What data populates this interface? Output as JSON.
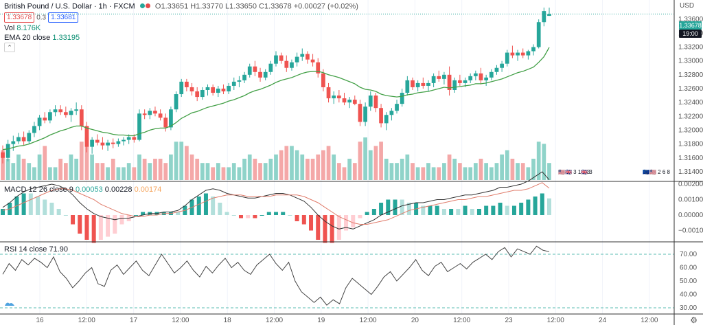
{
  "header": {
    "symbol_title": "British Pound / U.S. Dollar · 1h · FXCM",
    "ohlc": "O1.33651 H1.33770 L1.33650 C1.33678 +0.00027 (+0.02%)",
    "bid": "1.33678",
    "spread": "0.3",
    "ask": "1.33681",
    "vol_label": "Vol",
    "vol_value": "8.176K",
    "ema_label": "EMA 20 close",
    "ema_value": "1.33195"
  },
  "macd": {
    "label": "MACD 12 26 close 9",
    "v1": "0.00053",
    "v2": "0.00228",
    "v3": "0.00174"
  },
  "rsi": {
    "label": "RSI 14 close",
    "value": "71.90"
  },
  "price_axis": {
    "labels": [
      "1.33800",
      "1.33600",
      "1.33400",
      "1.33200",
      "1.33000",
      "1.32800",
      "1.32600",
      "1.32400",
      "1.32200",
      "1.32000",
      "1.31800",
      "1.31600",
      "1.31400"
    ],
    "usd_label": "USD",
    "last_price": "1.33678",
    "countdown": "19:00"
  },
  "macd_axis": [
    "0.00200",
    "0.00100",
    "0.00000",
    "−0.00100"
  ],
  "rsi_axis": [
    "70.00",
    "60.00",
    "50.00",
    "40.00",
    "30.00"
  ],
  "time_axis": [
    "16",
    "12:00",
    "17",
    "12:00",
    "18",
    "12:00",
    "19",
    "12:00",
    "20",
    "12:00",
    "23",
    "12:00",
    "24",
    "12:00"
  ],
  "events": [
    {
      "flags": "🇺🇸🇬🇧",
      "count": "3 1 6 3"
    },
    {
      "flags": "🇬🇧",
      "count": "3"
    },
    {
      "flags": "🇪🇺🇺🇸",
      "count": "2 6 8"
    }
  ],
  "chart_data": {
    "type": "candlestick",
    "title": "British Pound / U.S. Dollar · 1h · FXCM",
    "ylim": [
      1.3128,
      1.3386
    ],
    "x_ticks": [
      "16",
      "12:00",
      "17",
      "12:00",
      "18",
      "12:00",
      "19",
      "12:00",
      "20",
      "12:00",
      "23",
      "12:00",
      "24",
      "12:00"
    ],
    "candles": [
      [
        1.3168,
        1.3178,
        1.3152,
        1.316
      ],
      [
        1.316,
        1.3186,
        1.3155,
        1.318
      ],
      [
        1.318,
        1.3192,
        1.317,
        1.3184
      ],
      [
        1.3184,
        1.3196,
        1.318,
        1.319
      ],
      [
        1.319,
        1.3198,
        1.3178,
        1.3184
      ],
      [
        1.3184,
        1.32,
        1.318,
        1.3196
      ],
      [
        1.3196,
        1.3212,
        1.319,
        1.3206
      ],
      [
        1.3206,
        1.3222,
        1.32,
        1.3218
      ],
      [
        1.3218,
        1.3226,
        1.321,
        1.3214
      ],
      [
        1.3214,
        1.323,
        1.321,
        1.3226
      ],
      [
        1.3226,
        1.3236,
        1.322,
        1.323
      ],
      [
        1.323,
        1.3236,
        1.3222,
        1.3226
      ],
      [
        1.3226,
        1.3234,
        1.3218,
        1.3222
      ],
      [
        1.3222,
        1.3232,
        1.3212,
        1.3228
      ],
      [
        1.3228,
        1.324,
        1.3222,
        1.323
      ],
      [
        1.323,
        1.3236,
        1.32,
        1.3206
      ],
      [
        1.3206,
        1.3212,
        1.3168,
        1.3176
      ],
      [
        1.3176,
        1.319,
        1.3166,
        1.3186
      ],
      [
        1.3186,
        1.3194,
        1.3178,
        1.3182
      ],
      [
        1.3182,
        1.319,
        1.3172,
        1.3178
      ],
      [
        1.3178,
        1.3186,
        1.317,
        1.3182
      ],
      [
        1.3182,
        1.3188,
        1.3174,
        1.318
      ],
      [
        1.318,
        1.3188,
        1.3176,
        1.3184
      ],
      [
        1.3184,
        1.319,
        1.3178,
        1.3186
      ],
      [
        1.3186,
        1.3194,
        1.318,
        1.319
      ],
      [
        1.319,
        1.3194,
        1.3182,
        1.3186
      ],
      [
        1.3186,
        1.323,
        1.3184,
        1.3224
      ],
      [
        1.3224,
        1.323,
        1.3216,
        1.3222
      ],
      [
        1.3222,
        1.3232,
        1.3216,
        1.3228
      ],
      [
        1.3228,
        1.3234,
        1.322,
        1.3224
      ],
      [
        1.3224,
        1.323,
        1.3214,
        1.3218
      ],
      [
        1.3218,
        1.3224,
        1.3198,
        1.3204
      ],
      [
        1.3204,
        1.3234,
        1.32,
        1.323
      ],
      [
        1.323,
        1.3256,
        1.3226,
        1.3252
      ],
      [
        1.3252,
        1.3274,
        1.3248,
        1.327
      ],
      [
        1.327,
        1.3274,
        1.3256,
        1.3262
      ],
      [
        1.3262,
        1.3268,
        1.325,
        1.3256
      ],
      [
        1.3256,
        1.3262,
        1.3242,
        1.3248
      ],
      [
        1.3248,
        1.3262,
        1.3244,
        1.3258
      ],
      [
        1.3258,
        1.3266,
        1.325,
        1.3262
      ],
      [
        1.3262,
        1.3266,
        1.325,
        1.3254
      ],
      [
        1.3254,
        1.3264,
        1.3248,
        1.326
      ],
      [
        1.326,
        1.3266,
        1.3252,
        1.3256
      ],
      [
        1.3256,
        1.3268,
        1.3252,
        1.3264
      ],
      [
        1.3264,
        1.3276,
        1.3258,
        1.327
      ],
      [
        1.327,
        1.3278,
        1.3262,
        1.3272
      ],
      [
        1.3272,
        1.3284,
        1.3268,
        1.328
      ],
      [
        1.328,
        1.3296,
        1.3276,
        1.3292
      ],
      [
        1.3292,
        1.33,
        1.3278,
        1.3284
      ],
      [
        1.3284,
        1.329,
        1.327,
        1.3276
      ],
      [
        1.3276,
        1.3288,
        1.3272,
        1.3284
      ],
      [
        1.3284,
        1.33,
        1.328,
        1.3296
      ],
      [
        1.3296,
        1.3314,
        1.3292,
        1.3308
      ],
      [
        1.3308,
        1.3312,
        1.3296,
        1.33
      ],
      [
        1.33,
        1.3308,
        1.3284,
        1.329
      ],
      [
        1.329,
        1.3302,
        1.3286,
        1.3298
      ],
      [
        1.3298,
        1.3312,
        1.3292,
        1.3306
      ],
      [
        1.3306,
        1.3318,
        1.33,
        1.331
      ],
      [
        1.331,
        1.3314,
        1.3296,
        1.3302
      ],
      [
        1.3302,
        1.331,
        1.3292,
        1.3298
      ],
      [
        1.3298,
        1.3304,
        1.3276,
        1.3282
      ],
      [
        1.3282,
        1.3288,
        1.3256,
        1.3262
      ],
      [
        1.3262,
        1.3268,
        1.324,
        1.3246
      ],
      [
        1.3246,
        1.3256,
        1.3238,
        1.325
      ],
      [
        1.325,
        1.3258,
        1.324,
        1.3246
      ],
      [
        1.3246,
        1.3254,
        1.3236,
        1.324
      ],
      [
        1.324,
        1.3248,
        1.3232,
        1.3244
      ],
      [
        1.3244,
        1.325,
        1.3236,
        1.3238
      ],
      [
        1.3238,
        1.3244,
        1.3206,
        1.3212
      ],
      [
        1.3212,
        1.324,
        1.3206,
        1.3234
      ],
      [
        1.3234,
        1.3256,
        1.3228,
        1.325
      ],
      [
        1.325,
        1.3254,
        1.3226,
        1.3232
      ],
      [
        1.3232,
        1.3238,
        1.3204,
        1.321
      ],
      [
        1.321,
        1.3226,
        1.32,
        1.3222
      ],
      [
        1.3222,
        1.3232,
        1.3214,
        1.3228
      ],
      [
        1.3228,
        1.3244,
        1.3224,
        1.3238
      ],
      [
        1.3238,
        1.326,
        1.3234,
        1.3254
      ],
      [
        1.3254,
        1.3278,
        1.325,
        1.3272
      ],
      [
        1.3272,
        1.3276,
        1.3258,
        1.3262
      ],
      [
        1.3262,
        1.3272,
        1.3256,
        1.3268
      ],
      [
        1.3268,
        1.3276,
        1.326,
        1.3264
      ],
      [
        1.3264,
        1.3272,
        1.3256,
        1.3268
      ],
      [
        1.3268,
        1.3282,
        1.3262,
        1.3278
      ],
      [
        1.3278,
        1.3286,
        1.327,
        1.3274
      ],
      [
        1.3274,
        1.3284,
        1.3266,
        1.328
      ],
      [
        1.328,
        1.3292,
        1.325,
        1.3258
      ],
      [
        1.3258,
        1.3276,
        1.3254,
        1.3272
      ],
      [
        1.3272,
        1.328,
        1.3264,
        1.3268
      ],
      [
        1.3268,
        1.3276,
        1.3262,
        1.3272
      ],
      [
        1.3272,
        1.3282,
        1.3268,
        1.3278
      ],
      [
        1.3278,
        1.3286,
        1.3272,
        1.3282
      ],
      [
        1.3282,
        1.329,
        1.3266,
        1.3272
      ],
      [
        1.3272,
        1.328,
        1.3264,
        1.3276
      ],
      [
        1.3276,
        1.3288,
        1.3272,
        1.3284
      ],
      [
        1.3284,
        1.3294,
        1.328,
        1.329
      ],
      [
        1.329,
        1.33,
        1.3284,
        1.3296
      ],
      [
        1.3296,
        1.3316,
        1.3292,
        1.3312
      ],
      [
        1.3312,
        1.3322,
        1.3304,
        1.3308
      ],
      [
        1.3308,
        1.3316,
        1.33,
        1.3312
      ],
      [
        1.3312,
        1.3318,
        1.3304,
        1.3308
      ],
      [
        1.3308,
        1.3316,
        1.3302,
        1.3314
      ],
      [
        1.3314,
        1.3324,
        1.3308,
        1.332
      ],
      [
        1.332,
        1.336,
        1.3318,
        1.3356
      ],
      [
        1.3356,
        1.3377,
        1.335,
        1.3372
      ],
      [
        1.33651,
        1.3377,
        1.3365,
        1.33678
      ]
    ],
    "volume": [
      0.7,
      0.5,
      0.4,
      0.6,
      0.5,
      0.4,
      0.3,
      0.6,
      0.8,
      0.3,
      0.3,
      0.5,
      0.4,
      0.6,
      0.5,
      0.9,
      1.0,
      0.6,
      0.4,
      0.4,
      0.3,
      0.5,
      0.3,
      0.3,
      0.4,
      0.3,
      0.6,
      0.5,
      0.4,
      0.5,
      0.5,
      0.4,
      0.6,
      0.9,
      0.9,
      0.8,
      0.6,
      0.5,
      0.4,
      0.4,
      0.3,
      0.4,
      0.3,
      0.3,
      0.4,
      0.3,
      0.5,
      0.6,
      0.5,
      0.4,
      0.4,
      0.5,
      0.6,
      0.7,
      0.8,
      0.8,
      0.7,
      0.6,
      0.5,
      0.5,
      0.6,
      0.7,
      0.8,
      0.6,
      0.4,
      0.3,
      0.5,
      0.4,
      0.9,
      1.0,
      0.7,
      0.8,
      0.9,
      0.5,
      0.4,
      0.4,
      0.5,
      0.6,
      0.4,
      0.3,
      0.3,
      0.4,
      0.3,
      0.3,
      0.4,
      0.6,
      0.5,
      0.4,
      0.3,
      0.3,
      0.4,
      0.5,
      0.4,
      0.3,
      0.4,
      0.6,
      0.7,
      0.5,
      0.4,
      0.4,
      0.3,
      0.5,
      0.9,
      0.85,
      0.4
    ],
    "ema": [
      1.3172,
      1.3173,
      1.3175,
      1.3177,
      1.3178,
      1.318,
      1.3183,
      1.3186,
      1.3189,
      1.3193,
      1.3196,
      1.3199,
      1.3201,
      1.3204,
      1.3206,
      1.3206,
      1.3203,
      1.3201,
      1.3199,
      1.3197,
      1.3196,
      1.3194,
      1.3193,
      1.3193,
      1.3192,
      1.3192,
      1.3195,
      1.3197,
      1.32,
      1.3202,
      1.3203,
      1.3203,
      1.3206,
      1.3211,
      1.3217,
      1.3221,
      1.3225,
      1.3227,
      1.323,
      1.3233,
      1.3235,
      1.3237,
      1.3239,
      1.3242,
      1.3244,
      1.3247,
      1.325,
      1.3254,
      1.3257,
      1.3259,
      1.3262,
      1.3265,
      1.3269,
      1.3272,
      1.3274,
      1.3276,
      1.3279,
      1.3282,
      1.3284,
      1.3285,
      1.3285,
      1.3283,
      1.328,
      1.3278,
      1.3276,
      1.3273,
      1.327,
      1.3267,
      1.3262,
      1.3259,
      1.3258,
      1.3256,
      1.3252,
      1.325,
      1.3249,
      1.3248,
      1.3249,
      1.3251,
      1.3252,
      1.3254,
      1.3255,
      1.3256,
      1.3258,
      1.326,
      1.3262,
      1.3261,
      1.3262,
      1.3263,
      1.3264,
      1.3265,
      1.3267,
      1.3267,
      1.3268,
      1.327,
      1.3272,
      1.3274,
      1.3277,
      1.328,
      1.3283,
      1.3285,
      1.3288,
      1.3291,
      1.3298,
      1.3306,
      1.33195
    ],
    "macd": [
      0.0005,
      0.0008,
      0.0012,
      0.0015,
      0.0017,
      0.0018,
      0.0019,
      0.002,
      0.0019,
      0.0017,
      0.0013,
      0.0008,
      0.0004,
      0.0001,
      -0.0001,
      -0.0002,
      -0.0003,
      -0.0002,
      -0.0002,
      -0.0001,
      0.0,
      0.0001,
      0.0001,
      0.0002,
      0.0002,
      0.0003,
      0.0006,
      0.001,
      0.0013,
      0.0016,
      0.0017,
      0.0016,
      0.0014,
      0.0013,
      0.0012,
      0.0011,
      0.0011,
      0.0012,
      0.0013,
      0.0014,
      0.0014,
      0.0013,
      0.0011,
      0.0009,
      0.0005,
      0.0,
      -0.0004,
      -0.0007,
      -0.0009,
      -0.0008,
      -0.0009,
      -0.0007,
      -0.0005,
      -0.0003,
      0.0,
      0.0002,
      0.0004,
      0.0006,
      0.0007,
      0.0008,
      0.0008,
      0.0009,
      0.001,
      0.001,
      0.0011,
      0.0012,
      0.0013,
      0.0013,
      0.0014,
      0.0015,
      0.0016,
      0.0018,
      0.0018,
      0.0019,
      0.002,
      0.0022,
      0.0025,
      0.0028,
      0.00228
    ],
    "macd_signal": [
      0.0003,
      0.0004,
      0.0006,
      0.0008,
      0.001,
      0.0012,
      0.0014,
      0.0016,
      0.0017,
      0.0017,
      0.0016,
      0.0014,
      0.0012,
      0.001,
      0.0007,
      0.0005,
      0.0003,
      0.0001,
      0.0,
      -0.0001,
      -0.0001,
      0.0,
      0.0,
      0.0001,
      0.0001,
      0.0002,
      0.0003,
      0.0005,
      0.0007,
      0.0009,
      0.0011,
      0.0012,
      0.0013,
      0.0013,
      0.0013,
      0.0012,
      0.0012,
      0.0012,
      0.0012,
      0.0013,
      0.0013,
      0.0013,
      0.0013,
      0.0012,
      0.001,
      0.0008,
      0.0005,
      0.0002,
      -0.0001,
      -0.0003,
      -0.0005,
      -0.0006,
      -0.0006,
      -0.0005,
      -0.0004,
      -0.0003,
      -0.0001,
      0.0001,
      0.0003,
      0.0004,
      0.0005,
      0.0006,
      0.0007,
      0.0008,
      0.0009,
      0.001,
      0.001,
      0.0011,
      0.0012,
      0.0012,
      0.0013,
      0.0014,
      0.0015,
      0.0016,
      0.0016,
      0.0017,
      0.0019,
      0.0021,
      0.00174
    ],
    "rsi": [
      55,
      63,
      58,
      66,
      62,
      67,
      64,
      60,
      68,
      57,
      52,
      45,
      50,
      56,
      60,
      48,
      46,
      58,
      62,
      55,
      60,
      65,
      58,
      54,
      62,
      70,
      63,
      56,
      60,
      65,
      58,
      53,
      61,
      56,
      62,
      67,
      60,
      64,
      58,
      55,
      62,
      66,
      70,
      63,
      58,
      64,
      50,
      42,
      38,
      34,
      38,
      32,
      36,
      33,
      45,
      52,
      48,
      44,
      40,
      46,
      53,
      57,
      50,
      55,
      60,
      66,
      58,
      54,
      61,
      64,
      57,
      60,
      63,
      59,
      64,
      67,
      70,
      66,
      72,
      75,
      68,
      74,
      72,
      70,
      76,
      73,
      71.9
    ],
    "rsi_bands": [
      70,
      30
    ]
  }
}
